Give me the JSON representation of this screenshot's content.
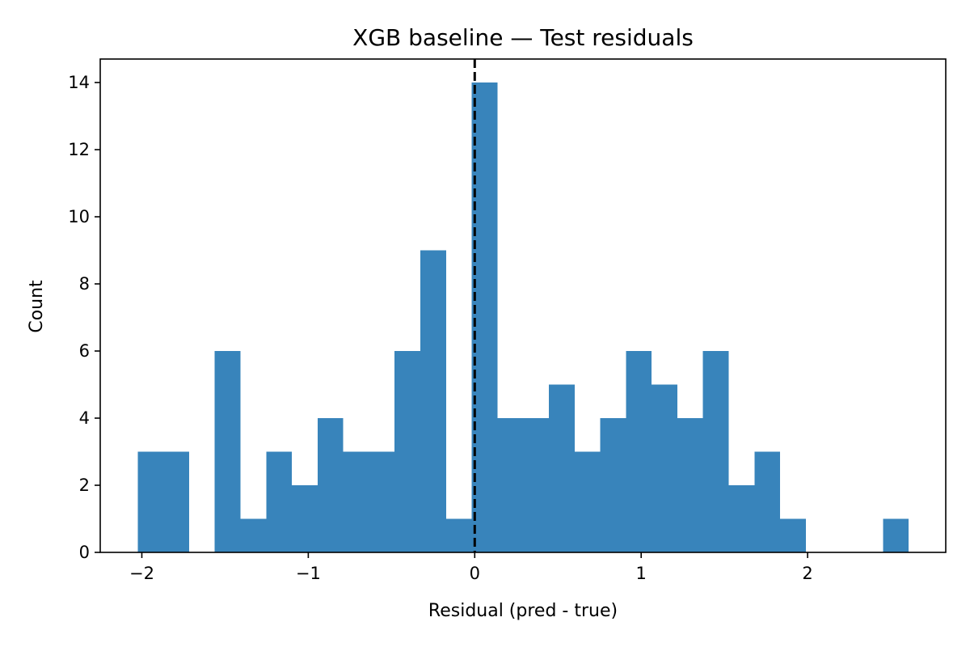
{
  "chart_data": {
    "type": "bar",
    "title": "XGB baseline — Test residuals",
    "xlabel": "Residual (pred - true)",
    "ylabel": "Count",
    "xlim": [
      -2.25,
      2.83
    ],
    "ylim": [
      0,
      14.7
    ],
    "xticks": [
      {
        "value": -2,
        "label": "−2"
      },
      {
        "value": -1,
        "label": "−1"
      },
      {
        "value": 0,
        "label": "0"
      },
      {
        "value": 1,
        "label": "1"
      },
      {
        "value": 2,
        "label": "2"
      }
    ],
    "yticks": [
      {
        "value": 0,
        "label": "0"
      },
      {
        "value": 2,
        "label": "2"
      },
      {
        "value": 4,
        "label": "4"
      },
      {
        "value": 6,
        "label": "6"
      },
      {
        "value": 8,
        "label": "8"
      },
      {
        "value": 10,
        "label": "10"
      },
      {
        "value": 12,
        "label": "12"
      },
      {
        "value": 14,
        "label": "14"
      }
    ],
    "bin_start": -2.025,
    "bin_width": 0.1544,
    "counts": [
      3,
      3,
      0,
      6,
      1,
      3,
      2,
      4,
      3,
      3,
      6,
      9,
      1,
      14,
      4,
      4,
      5,
      3,
      4,
      6,
      5,
      4,
      6,
      2,
      3,
      1,
      0,
      0,
      0,
      1
    ],
    "bar_color": "#3884bb",
    "reference_line": {
      "x": 0,
      "style": "dashed",
      "color": "#000000"
    },
    "grid": false,
    "legend": "none"
  }
}
